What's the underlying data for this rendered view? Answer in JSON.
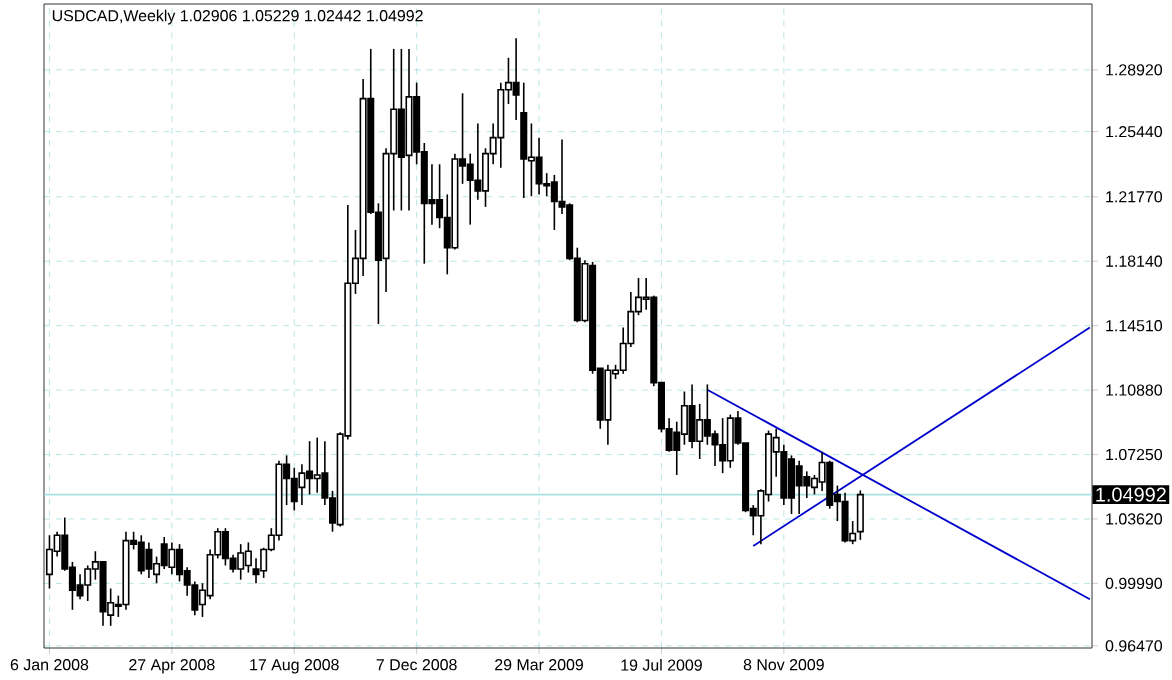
{
  "chart_data": {
    "type": "candlestick",
    "title": "USDCAD,Weekly  1.02906 1.05229 1.02442 1.04992",
    "color": "#000000",
    "x": [
      "2008-01-06",
      "2008-01-13",
      "2008-01-20",
      "2008-01-27",
      "2008-02-03",
      "2008-02-10",
      "2008-02-17",
      "2008-02-24",
      "2008-03-02",
      "2008-03-09",
      "2008-03-16",
      "2008-03-23",
      "2008-03-30",
      "2008-04-06",
      "2008-04-13",
      "2008-04-20",
      "2008-04-27",
      "2008-05-04",
      "2008-05-11",
      "2008-05-18",
      "2008-05-25",
      "2008-06-01",
      "2008-06-08",
      "2008-06-15",
      "2008-06-22",
      "2008-06-29",
      "2008-07-06",
      "2008-07-13",
      "2008-07-20",
      "2008-07-27",
      "2008-08-03",
      "2008-08-10",
      "2008-08-17",
      "2008-08-24",
      "2008-08-31",
      "2008-09-07",
      "2008-09-14",
      "2008-09-21",
      "2008-09-28",
      "2008-10-05",
      "2008-10-12",
      "2008-10-19",
      "2008-10-26",
      "2008-11-02",
      "2008-11-09",
      "2008-11-16",
      "2008-11-23",
      "2008-11-30",
      "2008-12-07",
      "2008-12-14",
      "2008-12-21",
      "2008-12-28",
      "2009-01-04",
      "2009-01-11",
      "2009-01-18",
      "2009-01-25",
      "2009-02-01",
      "2009-02-08",
      "2009-02-15",
      "2009-02-22",
      "2009-03-01",
      "2009-03-08",
      "2009-03-15",
      "2009-03-22",
      "2009-03-29",
      "2009-04-05",
      "2009-04-12",
      "2009-04-19",
      "2009-04-26",
      "2009-05-03",
      "2009-05-10",
      "2009-05-17",
      "2009-05-24",
      "2009-05-31",
      "2009-06-07",
      "2009-06-14",
      "2009-06-21",
      "2009-06-28",
      "2009-07-05",
      "2009-07-12",
      "2009-07-19",
      "2009-07-26",
      "2009-08-02",
      "2009-08-09",
      "2009-08-16",
      "2009-08-23",
      "2009-08-30",
      "2009-09-06",
      "2009-09-13",
      "2009-09-20",
      "2009-09-27",
      "2009-10-04",
      "2009-10-11",
      "2009-10-18",
      "2009-10-25",
      "2009-11-01",
      "2009-11-08",
      "2009-11-15",
      "2009-11-22",
      "2009-11-29",
      "2009-12-06",
      "2009-12-13",
      "2009-12-20",
      "2009-12-27",
      "2010-01-03",
      "2010-01-10",
      "2010-01-17"
    ],
    "ohlc": [
      [
        1.005,
        1.027,
        0.997,
        1.019
      ],
      [
        1.018,
        1.029,
        1.015,
        1.027
      ],
      [
        1.027,
        1.037,
        1.007,
        1.008
      ],
      [
        1.009,
        1.012,
        0.985,
        0.996
      ],
      [
        0.999,
        1.005,
        0.991,
        0.993
      ],
      [
        0.999,
        1.01,
        0.99,
        1.008
      ],
      [
        1.008,
        1.018,
        1.002,
        1.012
      ],
      [
        1.012,
        1.012,
        0.976,
        0.984
      ],
      [
        0.982,
        0.997,
        0.976,
        0.989
      ],
      [
        0.988,
        0.993,
        0.981,
        0.987
      ],
      [
        0.988,
        1.029,
        0.985,
        1.024
      ],
      [
        1.024,
        1.029,
        1.019,
        1.022
      ],
      [
        1.023,
        1.027,
        1.005,
        1.007
      ],
      [
        1.019,
        1.023,
        1.003,
        1.008
      ],
      [
        1.005,
        1.015,
        1.0,
        1.011
      ],
      [
        1.022,
        1.026,
        1.008,
        1.01
      ],
      [
        1.009,
        1.023,
        1.005,
        1.019
      ],
      [
        1.019,
        1.022,
        1.001,
        1.005
      ],
      [
        1.007,
        1.009,
        0.993,
        0.999
      ],
      [
        0.999,
        1.001,
        0.982,
        0.985
      ],
      [
        0.988,
        1.0,
        0.981,
        0.996
      ],
      [
        0.993,
        1.019,
        0.991,
        1.016
      ],
      [
        1.016,
        1.031,
        1.014,
        1.029
      ],
      [
        1.029,
        1.031,
        1.01,
        1.014
      ],
      [
        1.014,
        1.016,
        1.006,
        1.008
      ],
      [
        1.008,
        1.022,
        1.002,
        1.017
      ],
      [
        1.01,
        1.023,
        1.006,
        1.018
      ],
      [
        1.008,
        1.014,
        1.0,
        1.005
      ],
      [
        1.007,
        1.02,
        1.003,
        1.019
      ],
      [
        1.019,
        1.031,
        1.018,
        1.027
      ],
      [
        1.027,
        1.069,
        1.024,
        1.067
      ],
      [
        1.067,
        1.072,
        1.044,
        1.059
      ],
      [
        1.059,
        1.065,
        1.041,
        1.046
      ],
      [
        1.054,
        1.067,
        1.044,
        1.062
      ],
      [
        1.063,
        1.08,
        1.05,
        1.059
      ],
      [
        1.059,
        1.082,
        1.051,
        1.061
      ],
      [
        1.062,
        1.08,
        1.044,
        1.048
      ],
      [
        1.048,
        1.052,
        1.029,
        1.034
      ],
      [
        1.033,
        1.085,
        1.032,
        1.084
      ],
      [
        1.083,
        1.213,
        1.081,
        1.169
      ],
      [
        1.169,
        1.199,
        1.163,
        1.183
      ],
      [
        1.183,
        1.284,
        1.173,
        1.273
      ],
      [
        1.273,
        1.301,
        1.208,
        1.209
      ],
      [
        1.209,
        1.214,
        1.146,
        1.182
      ],
      [
        1.183,
        1.245,
        1.164,
        1.242
      ],
      [
        1.242,
        1.301,
        1.21,
        1.267
      ],
      [
        1.267,
        1.301,
        1.21,
        1.24
      ],
      [
        1.241,
        1.301,
        1.21,
        1.274
      ],
      [
        1.274,
        1.282,
        1.236,
        1.243
      ],
      [
        1.243,
        1.248,
        1.18,
        1.214
      ],
      [
        1.216,
        1.236,
        1.202,
        1.214
      ],
      [
        1.216,
        1.236,
        1.2,
        1.206
      ],
      [
        1.206,
        1.219,
        1.174,
        1.189
      ],
      [
        1.189,
        1.242,
        1.188,
        1.239
      ],
      [
        1.239,
        1.276,
        1.225,
        1.235
      ],
      [
        1.236,
        1.242,
        1.202,
        1.227
      ],
      [
        1.227,
        1.259,
        1.216,
        1.221
      ],
      [
        1.221,
        1.245,
        1.212,
        1.242
      ],
      [
        1.242,
        1.259,
        1.236,
        1.251
      ],
      [
        1.251,
        1.282,
        1.234,
        1.278
      ],
      [
        1.278,
        1.296,
        1.27,
        1.282
      ],
      [
        1.282,
        1.307,
        1.261,
        1.275
      ],
      [
        1.265,
        1.282,
        1.217,
        1.239
      ],
      [
        1.238,
        1.259,
        1.218,
        1.24
      ],
      [
        1.24,
        1.251,
        1.219,
        1.225
      ],
      [
        1.225,
        1.231,
        1.218,
        1.224
      ],
      [
        1.226,
        1.23,
        1.199,
        1.215
      ],
      [
        1.215,
        1.25,
        1.208,
        1.212
      ],
      [
        1.213,
        1.214,
        1.182,
        1.183
      ],
      [
        1.183,
        1.189,
        1.147,
        1.148
      ],
      [
        1.148,
        1.182,
        1.147,
        1.18
      ],
      [
        1.179,
        1.181,
        1.118,
        1.12
      ],
      [
        1.121,
        1.121,
        1.087,
        1.092
      ],
      [
        1.092,
        1.123,
        1.078,
        1.12
      ],
      [
        1.118,
        1.123,
        1.115,
        1.12
      ],
      [
        1.12,
        1.144,
        1.118,
        1.135
      ],
      [
        1.135,
        1.164,
        1.133,
        1.153
      ],
      [
        1.153,
        1.172,
        1.151,
        1.161
      ],
      [
        1.16,
        1.172,
        1.154,
        1.161
      ],
      [
        1.161,
        1.162,
        1.111,
        1.113
      ],
      [
        1.113,
        1.113,
        1.085,
        1.087
      ],
      [
        1.087,
        1.093,
        1.074,
        1.075
      ],
      [
        1.085,
        1.091,
        1.061,
        1.075
      ],
      [
        1.084,
        1.108,
        1.078,
        1.1
      ],
      [
        1.1,
        1.112,
        1.076,
        1.08
      ],
      [
        1.08,
        1.101,
        1.07,
        1.092
      ],
      [
        1.092,
        1.112,
        1.078,
        1.083
      ],
      [
        1.084,
        1.086,
        1.066,
        1.078
      ],
      [
        1.078,
        1.093,
        1.062,
        1.069
      ],
      [
        1.069,
        1.095,
        1.065,
        1.093
      ],
      [
        1.093,
        1.097,
        1.078,
        1.079
      ],
      [
        1.079,
        1.079,
        1.04,
        1.041
      ],
      [
        1.042,
        1.044,
        1.027,
        1.038
      ],
      [
        1.038,
        1.053,
        1.022,
        1.052
      ],
      [
        1.05,
        1.086,
        1.046,
        1.084
      ],
      [
        1.074,
        1.087,
        1.06,
        1.082
      ],
      [
        1.074,
        1.078,
        1.044,
        1.048
      ],
      [
        1.07,
        1.072,
        1.039,
        1.048
      ],
      [
        1.066,
        1.069,
        1.039,
        1.055
      ],
      [
        1.06,
        1.063,
        1.048,
        1.055
      ],
      [
        1.054,
        1.061,
        1.05,
        1.059
      ],
      [
        1.057,
        1.074,
        1.052,
        1.068
      ],
      [
        1.068,
        1.069,
        1.042,
        1.044
      ],
      [
        1.05,
        1.055,
        1.035,
        1.046
      ],
      [
        1.046,
        1.051,
        1.023,
        1.024
      ],
      [
        1.024,
        1.035,
        1.022,
        1.028
      ],
      [
        1.02906,
        1.05229,
        1.02442,
        1.04992
      ]
    ],
    "series": [
      {
        "type": "line",
        "color": "#0000cc",
        "x": [
          "2009-08-30",
          "2010-08-15"
        ],
        "values": [
          1.109,
          0.991
        ]
      },
      {
        "type": "line",
        "color": "#0000cc",
        "x": [
          "2009-10-11",
          "2010-08-15"
        ],
        "values": [
          1.021,
          1.144
        ]
      }
    ],
    "xlim": [
      "2008-01-01",
      "2010-08-17"
    ],
    "xticks": [
      {
        "value": "2008-01-06",
        "label": "6 Jan 2008"
      },
      {
        "value": "2008-04-27",
        "label": "27 Apr 2008"
      },
      {
        "value": "2008-08-17",
        "label": "17 Aug 2008"
      },
      {
        "value": "2008-12-07",
        "label": "7 Dec 2008"
      },
      {
        "value": "2009-03-29",
        "label": "29 Mar 2009"
      },
      {
        "value": "2009-07-19",
        "label": "19 Jul 2009"
      },
      {
        "value": "2009-11-08",
        "label": "8 Nov 2009"
      }
    ],
    "ylim": [
      0.9635,
      1.3263
    ],
    "yticks": [
      {
        "value": 0.9647,
        "label": "0.96470"
      },
      {
        "value": 0.9999,
        "label": "0.99990"
      },
      {
        "value": 1.0362,
        "label": "1.03620"
      },
      {
        "value": 1.0725,
        "label": "1.07250"
      },
      {
        "value": 1.1088,
        "label": "1.10880"
      },
      {
        "value": 1.1451,
        "label": "1.14510"
      },
      {
        "value": 1.1814,
        "label": "1.18140"
      },
      {
        "value": 1.2177,
        "label": "1.21770"
      },
      {
        "value": 1.2544,
        "label": "1.25440"
      },
      {
        "value": 1.2892,
        "label": "1.28920"
      }
    ],
    "ref_lines": [
      {
        "axis": "y",
        "value": 1.04992,
        "label": "1.04992",
        "color": "#a8e0e0"
      }
    ],
    "grid": true
  }
}
